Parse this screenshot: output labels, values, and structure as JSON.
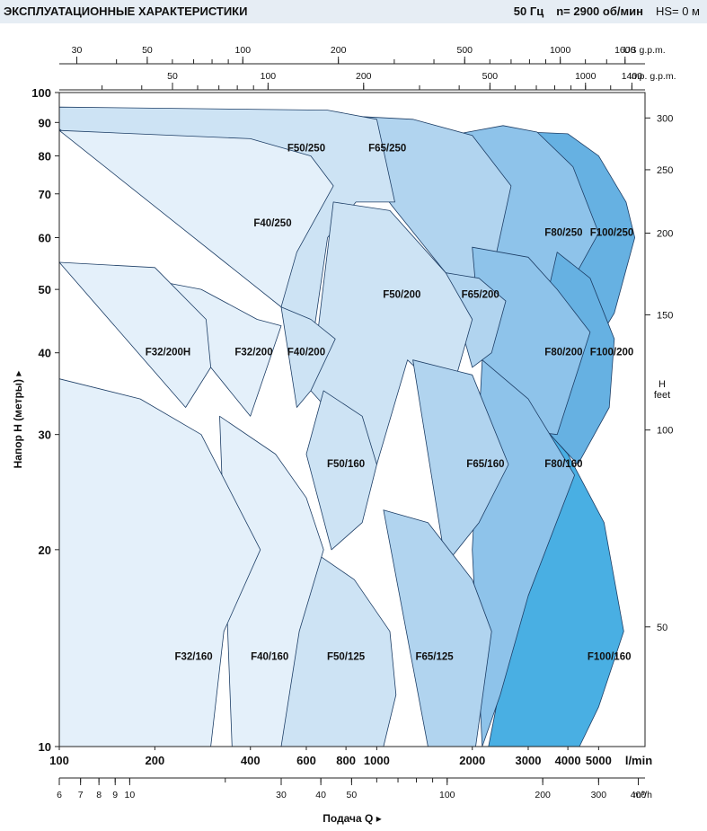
{
  "header": {
    "title": "ЭКСПЛУАТАЦИОННЫЕ ХАРАКТЕРИСТИКИ",
    "frequency": "50 Гц",
    "speed": "n= 2900 об/мин",
    "hs": "HS= 0 м"
  },
  "chart_data": {
    "type": "area",
    "scale": "log-log",
    "title": "ЭКСПЛУАТАЦИОННЫЕ ХАРАКТЕРИСТИКИ",
    "xlabel": "Подача Q",
    "ylabel": "Напор H (метры)",
    "xlim_lmin": [
      100,
      7000
    ],
    "ylim_m": [
      10,
      100
    ],
    "axes": {
      "x_lmin": {
        "unit": "l/min",
        "ticks": [
          100,
          200,
          400,
          600,
          800,
          1000,
          2000,
          3000,
          4000,
          5000
        ],
        "labels": [
          "100",
          "200",
          "400",
          "600",
          "800",
          "1000",
          "2000",
          "3000",
          "4000",
          "5000"
        ]
      },
      "x_m3h": {
        "unit": "m³/h",
        "ticks": [
          6,
          7,
          8,
          9,
          10,
          30,
          40,
          50,
          100,
          200,
          300,
          400
        ],
        "labels": [
          "6",
          "7",
          "8",
          "9",
          "10",
          "30",
          "40",
          "50",
          "100",
          "200",
          "300",
          "400"
        ]
      },
      "x_usgpm": {
        "unit": "US g.p.m.",
        "ticks": [
          30,
          50,
          100,
          200,
          500,
          1000,
          1600
        ],
        "labels": [
          "30",
          "50",
          "100",
          "200",
          "500",
          "1000",
          "1600"
        ]
      },
      "x_impgpm": {
        "unit": "Imp. g.p.m.",
        "ticks": [
          50,
          100,
          200,
          500,
          1000,
          1400
        ],
        "labels": [
          "50",
          "100",
          "200",
          "500",
          "1000",
          "1400"
        ]
      },
      "y_m": {
        "unit": "м",
        "ticks": [
          10,
          20,
          30,
          40,
          50,
          60,
          70,
          80,
          90,
          100
        ],
        "labels": [
          "10",
          "20",
          "30",
          "40",
          "50",
          "60",
          "70",
          "80",
          "90",
          "100"
        ]
      },
      "y_feet": {
        "unit": "H feet",
        "label_line1": "H",
        "label_line2": "feet",
        "ticks": [
          50,
          100,
          150,
          200,
          250,
          300
        ],
        "labels": [
          "50",
          "100",
          "150",
          "200",
          "250",
          "300"
        ]
      },
      "x_unit_label": "l/min",
      "m3h_unit_label": "m³/h",
      "usgpm_unit_label": "US g.p.m.",
      "impgpm_unit_label": "Imp. g.p.m."
    },
    "colors": {
      "shade1": "#e4f0fa",
      "shade2": "#cde3f4",
      "shade3": "#b1d4ef",
      "shade4": "#8ec3ea",
      "shade5": "#66b1e2",
      "shade6": "#49afe3",
      "border": "#1d3e66",
      "header_bg": "#e6edf4"
    },
    "series": [
      {
        "name": "F100/250",
        "label": "F100/250",
        "label_at": [
          5500,
          61
        ],
        "shade": "shade5",
        "outline": [
          [
            2150,
            84
          ],
          [
            3000,
            87
          ],
          [
            4000,
            86.5
          ],
          [
            5000,
            80
          ],
          [
            6100,
            68
          ],
          [
            6500,
            60
          ],
          [
            5600,
            46
          ],
          [
            4700,
            40
          ],
          [
            3700,
            44
          ],
          [
            2950,
            57
          ],
          [
            2150,
            84
          ]
        ]
      },
      {
        "name": "F80/250",
        "label": "F80/250",
        "label_at": [
          3880,
          61
        ],
        "shade": "shade4",
        "outline": [
          [
            1700,
            86
          ],
          [
            2500,
            89
          ],
          [
            3200,
            87
          ],
          [
            4150,
            77
          ],
          [
            5000,
            61
          ],
          [
            3900,
            49
          ],
          [
            3000,
            54.5
          ],
          [
            2300,
            50
          ],
          [
            1700,
            86
          ]
        ]
      },
      {
        "name": "F65/250",
        "label": "F65/250",
        "label_at": [
          1080,
          82
        ],
        "shade": "shade3",
        "outline": [
          [
            680,
            92.5
          ],
          [
            1300,
            91
          ],
          [
            2000,
            86
          ],
          [
            2650,
            72
          ],
          [
            2250,
            50
          ],
          [
            1650,
            53
          ],
          [
            1120,
            67
          ],
          [
            680,
            92.5
          ]
        ]
      },
      {
        "name": "F50/250",
        "label": "F50/250",
        "label_at": [
          600,
          82
        ],
        "shade": "shade2",
        "outline": [
          [
            100,
            95
          ],
          [
            700,
            94
          ],
          [
            1000,
            91
          ],
          [
            1140,
            68
          ],
          [
            860,
            68
          ],
          [
            700,
            60
          ],
          [
            620,
            40
          ],
          [
            500,
            47
          ],
          [
            100,
            88
          ],
          [
            100,
            95
          ]
        ]
      },
      {
        "name": "F40/250",
        "label": "F40/250",
        "label_at": [
          470,
          63
        ],
        "shade": "shade1",
        "outline": [
          [
            100,
            87.5
          ],
          [
            400,
            85
          ],
          [
            620,
            80
          ],
          [
            730,
            72
          ],
          [
            560,
            57
          ],
          [
            500,
            47
          ],
          [
            100,
            87.5
          ]
        ]
      },
      {
        "name": "F100/200",
        "label": "F100/200",
        "label_at": [
          5500,
          40
        ],
        "shade": "shade5",
        "outline": [
          [
            3700,
            57
          ],
          [
            4700,
            52
          ],
          [
            5600,
            42
          ],
          [
            5400,
            33
          ],
          [
            4300,
            27
          ],
          [
            3300,
            31
          ],
          [
            2900,
            34
          ],
          [
            3700,
            57
          ]
        ]
      },
      {
        "name": "F80/200",
        "label": "F80/200",
        "label_at": [
          3880,
          40
        ],
        "shade": "shade4",
        "outline": [
          [
            2000,
            58
          ],
          [
            3000,
            56
          ],
          [
            3700,
            50
          ],
          [
            4700,
            43
          ],
          [
            3700,
            30
          ],
          [
            2800,
            30.5
          ],
          [
            2150,
            39
          ],
          [
            2000,
            58
          ]
        ]
      },
      {
        "name": "F65/200",
        "label": "F65/200",
        "label_at": [
          2120,
          49
        ],
        "shade": "shade3",
        "outline": [
          [
            1650,
            53
          ],
          [
            2100,
            52
          ],
          [
            2550,
            48
          ],
          [
            2300,
            40
          ],
          [
            2000,
            38
          ],
          [
            1650,
            53
          ]
        ]
      },
      {
        "name": "F50/200",
        "label": "F50/200",
        "label_at": [
          1200,
          49
        ],
        "shade": "shade2",
        "outline": [
          [
            730,
            68
          ],
          [
            1100,
            66
          ],
          [
            1650,
            53
          ],
          [
            2000,
            45
          ],
          [
            1700,
            34
          ],
          [
            1250,
            39
          ],
          [
            1000,
            27
          ],
          [
            620,
            35
          ],
          [
            730,
            68
          ]
        ]
      },
      {
        "name": "F40/200",
        "label": "F40/200",
        "label_at": [
          600,
          40
        ],
        "shade": "shade2",
        "outline": [
          [
            500,
            47
          ],
          [
            620,
            45
          ],
          [
            740,
            42
          ],
          [
            620,
            35
          ],
          [
            560,
            33
          ],
          [
            500,
            47
          ]
        ]
      },
      {
        "name": "F32/200",
        "label": "F32/200",
        "label_at": [
          410,
          40
        ],
        "shade": "shade1",
        "outline": [
          [
            100,
            55
          ],
          [
            280,
            50
          ],
          [
            420,
            45
          ],
          [
            500,
            44
          ],
          [
            400,
            32
          ],
          [
            300,
            38
          ],
          [
            100,
            55
          ]
        ]
      },
      {
        "name": "F32/200H",
        "label": "F32/200H",
        "label_at": [
          220,
          40
        ],
        "shade": "shade1",
        "outline": [
          [
            100,
            55
          ],
          [
            200,
            54
          ],
          [
            290,
            45
          ],
          [
            300,
            38
          ],
          [
            250,
            33
          ],
          [
            100,
            55
          ]
        ]
      },
      {
        "name": "F100/160",
        "label": "F100/160",
        "label_at": [
          5400,
          13.7
        ],
        "shade": "shade6",
        "outline": [
          [
            2950,
            33
          ],
          [
            4000,
            28
          ],
          [
            5200,
            22
          ],
          [
            6000,
            15
          ],
          [
            5000,
            11.5
          ],
          [
            4350,
            10
          ],
          [
            2250,
            10
          ],
          [
            2500,
            13
          ],
          [
            2950,
            33
          ]
        ]
      },
      {
        "name": "F80/160",
        "label": "F80/160",
        "label_at": [
          3880,
          27
        ],
        "shade": "shade4",
        "outline": [
          [
            2150,
            39
          ],
          [
            3000,
            34
          ],
          [
            4200,
            26
          ],
          [
            3000,
            17
          ],
          [
            2450,
            12
          ],
          [
            2150,
            10
          ],
          [
            2000,
            20
          ],
          [
            2150,
            39
          ]
        ]
      },
      {
        "name": "F65/160",
        "label": "F65/160",
        "label_at": [
          2200,
          27
        ],
        "shade": "shade3",
        "outline": [
          [
            1300,
            39
          ],
          [
            2000,
            37
          ],
          [
            2600,
            27
          ],
          [
            2100,
            22
          ],
          [
            1650,
            19
          ],
          [
            1300,
            39
          ]
        ]
      },
      {
        "name": "F65/125",
        "label": "F65/125",
        "label_at": [
          1520,
          13.7
        ],
        "shade": "shade3",
        "outline": [
          [
            1050,
            23
          ],
          [
            1450,
            22
          ],
          [
            2000,
            18
          ],
          [
            2300,
            15
          ],
          [
            2050,
            10
          ],
          [
            1450,
            10
          ],
          [
            1050,
            23
          ]
        ]
      },
      {
        "name": "F50/160",
        "label": "F50/160",
        "label_at": [
          800,
          27
        ],
        "shade": "shade2",
        "outline": [
          [
            680,
            35
          ],
          [
            900,
            32
          ],
          [
            1000,
            27
          ],
          [
            900,
            22
          ],
          [
            720,
            20
          ],
          [
            600,
            28
          ],
          [
            680,
            35
          ]
        ]
      },
      {
        "name": "F50/125",
        "label": "F50/125",
        "label_at": [
          800,
          13.7
        ],
        "shade": "shade2",
        "outline": [
          [
            620,
            20
          ],
          [
            850,
            18
          ],
          [
            1100,
            15
          ],
          [
            1150,
            12
          ],
          [
            1050,
            10
          ],
          [
            470,
            10
          ],
          [
            620,
            20
          ]
        ]
      },
      {
        "name": "F40/160",
        "label": "F40/160",
        "label_at": [
          460,
          13.7
        ],
        "shade": "shade1",
        "outline": [
          [
            320,
            32
          ],
          [
            480,
            28
          ],
          [
            600,
            24
          ],
          [
            680,
            20
          ],
          [
            570,
            15
          ],
          [
            500,
            10
          ],
          [
            350,
            10
          ],
          [
            320,
            32
          ]
        ]
      },
      {
        "name": "F32/160",
        "label": "F32/160",
        "label_at": [
          265,
          13.7
        ],
        "shade": "shade1",
        "outline": [
          [
            100,
            36.5
          ],
          [
            180,
            34
          ],
          [
            280,
            30
          ],
          [
            430,
            20
          ],
          [
            330,
            15
          ],
          [
            300,
            10
          ],
          [
            100,
            10
          ],
          [
            100,
            36.5
          ]
        ]
      }
    ]
  }
}
